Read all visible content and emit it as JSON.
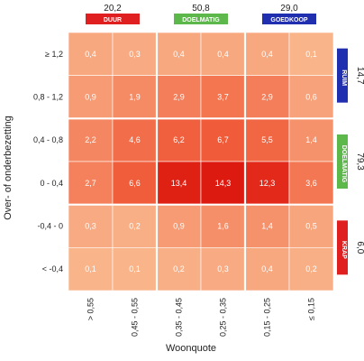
{
  "chart_data": {
    "type": "heatmap",
    "title": "",
    "xlabel": "Woonquote",
    "ylabel": "Over- of onderbezetting",
    "x_categories": [
      "> 0,55",
      "0,45 - 0,55",
      "0,35 - 0,45",
      "0,25 - 0,35",
      "0,15 - 0,25",
      "≤ 0,15"
    ],
    "y_categories": [
      "≥ 1,2",
      "0,8 - 1,2",
      "0,4 - 0,8",
      "0 - 0,4",
      "-0,4 - 0",
      "< -0,4"
    ],
    "values": [
      [
        "0,4",
        "0,3",
        "0,4",
        "0,4",
        "0,4",
        "0,1"
      ],
      [
        "0,9",
        "1,9",
        "2,9",
        "3,7",
        "2,9",
        "0,6"
      ],
      [
        "2,2",
        "4,6",
        "6,2",
        "6,7",
        "5,5",
        "1,4"
      ],
      [
        "2,7",
        "6,6",
        "13,4",
        "14,3",
        "12,3",
        "3,6"
      ],
      [
        "0,3",
        "0,2",
        "0,9",
        "1,6",
        "1,4",
        "0,5"
      ],
      [
        "0,1",
        "0,1",
        "0,2",
        "0,3",
        "0,4",
        "0,2"
      ]
    ],
    "column_groups": [
      {
        "label": "DUUR",
        "total": "20,2",
        "color": "#e02020",
        "columns": [
          0,
          1
        ]
      },
      {
        "label": "DOELMATIG",
        "total": "50,8",
        "color": "#5cb84a",
        "columns": [
          2,
          3
        ]
      },
      {
        "label": "GOEDKOOP",
        "total": "29,0",
        "color": "#1f2fb0",
        "columns": [
          4,
          5
        ]
      }
    ],
    "row_groups": [
      {
        "label": "RUIM",
        "total": "14,7",
        "color": "#1f2fb0",
        "rows": [
          0,
          1
        ]
      },
      {
        "label": "DOELMATIG",
        "total": "79,3",
        "color": "#5cb84a",
        "rows": [
          2,
          3
        ]
      },
      {
        "label": "KRAP",
        "total": "6,0",
        "color": "#e02020",
        "rows": [
          4,
          5
        ]
      }
    ],
    "color_scale": {
      "low": "#fac095",
      "mid": "#f05a38",
      "high": "#dd1a10",
      "max_value": 14.3
    }
  }
}
